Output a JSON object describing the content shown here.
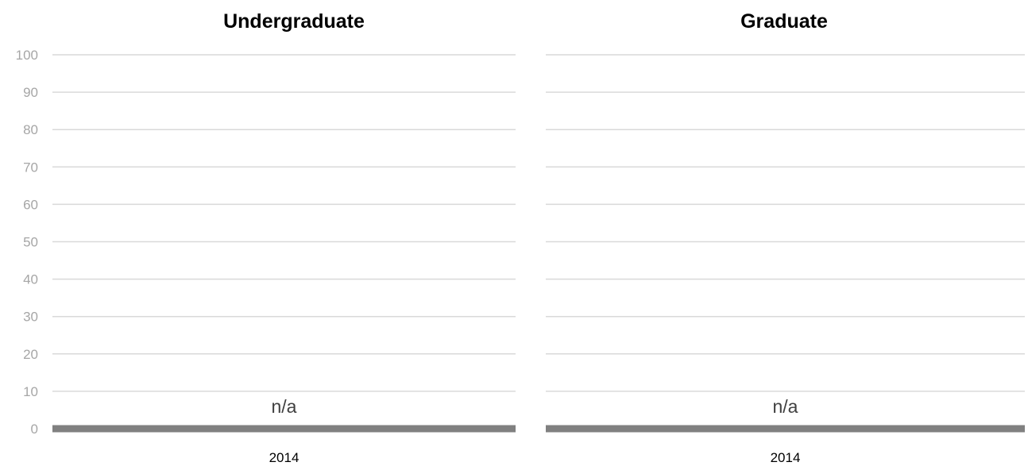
{
  "chart_data": [
    {
      "type": "bar",
      "title": "Undergraduate",
      "categories": [
        "2014"
      ],
      "values": [
        0
      ],
      "data_labels": [
        "n/a"
      ],
      "ylim": [
        0,
        100
      ],
      "yticks": [
        0,
        10,
        20,
        30,
        40,
        50,
        60,
        70,
        80,
        90,
        100
      ],
      "grid": true,
      "colors": {
        "gridline": "#d9d9d9",
        "axis": "#808080",
        "tick_label": "#a6a6a6"
      }
    },
    {
      "type": "bar",
      "title": "Graduate",
      "categories": [
        "2014"
      ],
      "values": [
        0
      ],
      "data_labels": [
        "n/a"
      ],
      "ylim": [
        0,
        100
      ],
      "yticks": [
        0,
        10,
        20,
        30,
        40,
        50,
        60,
        70,
        80,
        90,
        100
      ],
      "grid": true,
      "colors": {
        "gridline": "#d9d9d9",
        "axis": "#808080",
        "tick_label": "#a6a6a6"
      }
    }
  ]
}
